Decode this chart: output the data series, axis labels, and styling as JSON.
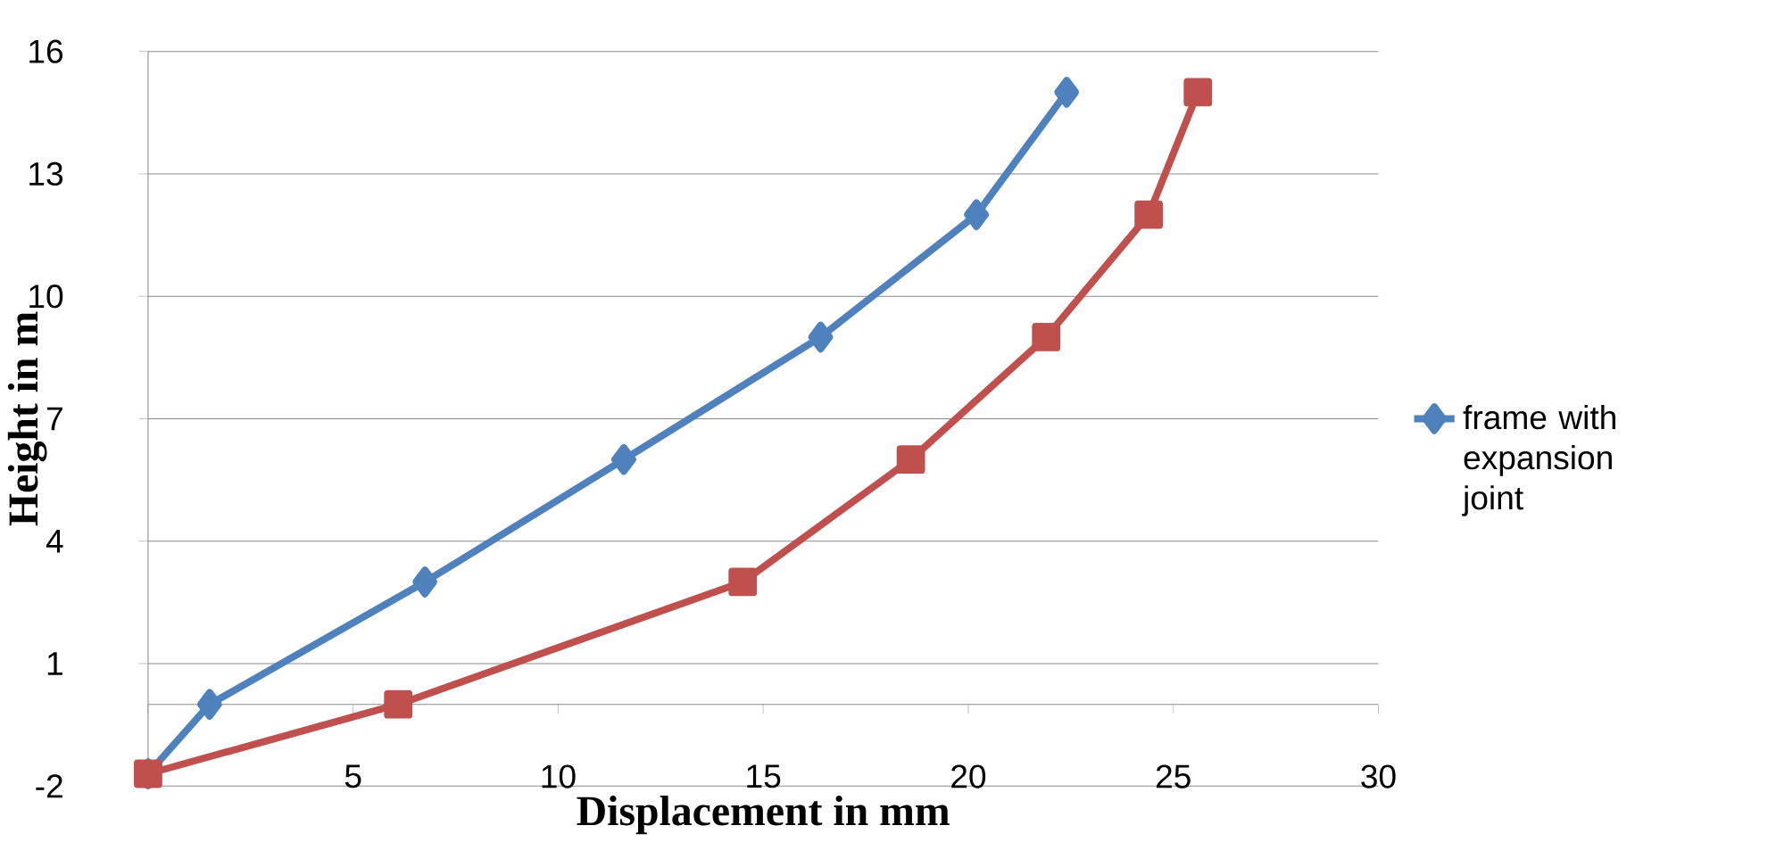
{
  "chart_data": {
    "type": "line",
    "xlabel": "Displacement in mm",
    "ylabel": "Height in m",
    "xlim": [
      0,
      30
    ],
    "xticks": [
      0,
      5,
      10,
      15,
      20,
      25,
      30
    ],
    "ylim": [
      -2,
      16
    ],
    "yticks": [
      -2,
      1,
      4,
      7,
      10,
      13,
      16
    ],
    "grid": "y",
    "legend": "right",
    "series": [
      {
        "name": "frame with expansion joint",
        "color": "#4f81bd",
        "marker": "diamond",
        "x": [
          0,
          1.5,
          6.75,
          11.6,
          16.4,
          20.2,
          22.4
        ],
        "values": [
          -1.7,
          0,
          3,
          6,
          9,
          12,
          15
        ]
      },
      {
        "color": "#c0504d",
        "marker": "square",
        "x": [
          0,
          6.1,
          14.5,
          18.6,
          21.9,
          24.4,
          25.6
        ],
        "values": [
          -1.7,
          0,
          3,
          6,
          9,
          12,
          15
        ]
      }
    ]
  }
}
